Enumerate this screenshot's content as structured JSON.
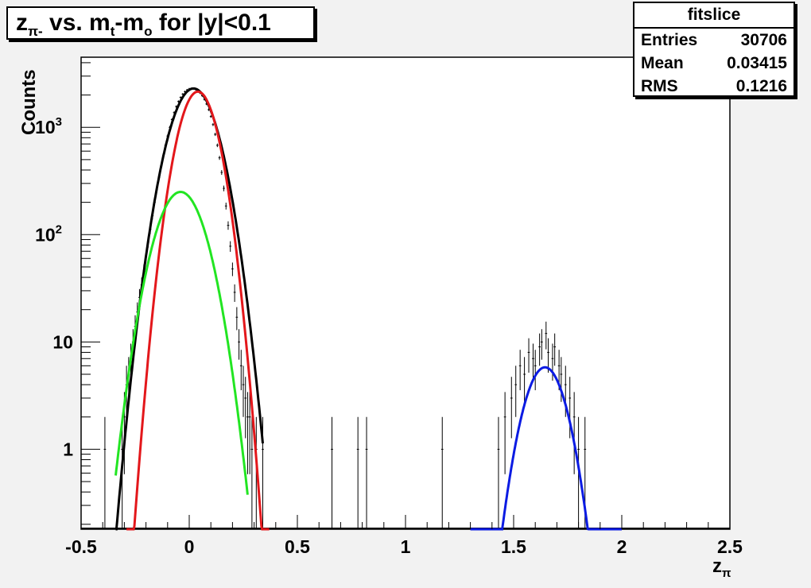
{
  "title": {
    "main": "z",
    "sub": "π-",
    "mid": " vs. m",
    "sub2": "t",
    "dash": "-m",
    "sub3": "o",
    "tail": " for |y|<0.1"
  },
  "stats": {
    "header": "fitslice",
    "rows": [
      {
        "label": "Entries",
        "value": "30706"
      },
      {
        "label": "Mean",
        "value": "0.03415"
      },
      {
        "label": "RMS",
        "value": "0.1216"
      }
    ]
  },
  "chart_data": {
    "type": "line",
    "xlabel": "z",
    "xlabel_sub": "π",
    "ylabel": "Counts",
    "xlim": [
      -0.5,
      2.5
    ],
    "ylim": [
      0.18,
      4500
    ],
    "y_scale": "log",
    "x_ticks": [
      "-0.5",
      "0",
      "0.5",
      "1",
      "1.5",
      "2",
      "2.5"
    ],
    "y_ticks": [
      {
        "value": 1,
        "label": "1"
      },
      {
        "value": 10,
        "label": "10"
      },
      {
        "value": 100,
        "label": "10",
        "exp": "2"
      },
      {
        "value": 1000,
        "label": "10",
        "exp": "3"
      }
    ],
    "grid": false,
    "histogram": {
      "name": "data",
      "color": "#000000",
      "bin_width": 0.01,
      "points": [
        [
          -0.39,
          1
        ],
        [
          -0.31,
          1
        ],
        [
          -0.3,
          2
        ],
        [
          -0.29,
          4
        ],
        [
          -0.28,
          5
        ],
        [
          -0.27,
          7
        ],
        [
          -0.26,
          10
        ],
        [
          -0.25,
          14
        ],
        [
          -0.24,
          19
        ],
        [
          -0.23,
          26
        ],
        [
          -0.22,
          34
        ],
        [
          -0.21,
          46
        ],
        [
          -0.2,
          62
        ],
        [
          -0.19,
          85
        ],
        [
          -0.18,
          112
        ],
        [
          -0.17,
          150
        ],
        [
          -0.16,
          200
        ],
        [
          -0.15,
          262
        ],
        [
          -0.14,
          340
        ],
        [
          -0.13,
          435
        ],
        [
          -0.12,
          545
        ],
        [
          -0.11,
          680
        ],
        [
          -0.1,
          830
        ],
        [
          -0.09,
          1000
        ],
        [
          -0.08,
          1180
        ],
        [
          -0.07,
          1370
        ],
        [
          -0.06,
          1560
        ],
        [
          -0.05,
          1740
        ],
        [
          -0.04,
          1900
        ],
        [
          -0.03,
          2040
        ],
        [
          -0.02,
          2150
        ],
        [
          -0.01,
          2230
        ],
        [
          0.0,
          2280
        ],
        [
          0.01,
          2300
        ],
        [
          0.02,
          2290
        ],
        [
          0.03,
          2250
        ],
        [
          0.04,
          2180
        ],
        [
          0.05,
          2090
        ],
        [
          0.06,
          1970
        ],
        [
          0.07,
          1820
        ],
        [
          0.08,
          1650
        ],
        [
          0.09,
          1460
        ],
        [
          0.1,
          1260
        ],
        [
          0.11,
          1060
        ],
        [
          0.12,
          860
        ],
        [
          0.13,
          680
        ],
        [
          0.14,
          520
        ],
        [
          0.15,
          380
        ],
        [
          0.16,
          270
        ],
        [
          0.17,
          185
        ],
        [
          0.18,
          122
        ],
        [
          0.19,
          78
        ],
        [
          0.2,
          48
        ],
        [
          0.21,
          29
        ],
        [
          0.22,
          17
        ],
        [
          0.23,
          10
        ],
        [
          0.24,
          6
        ],
        [
          0.25,
          4
        ],
        [
          0.26,
          3
        ],
        [
          0.27,
          2
        ],
        [
          0.28,
          2
        ],
        [
          0.29,
          1
        ],
        [
          0.31,
          1
        ],
        [
          0.34,
          1
        ],
        [
          0.66,
          1
        ],
        [
          0.78,
          1
        ],
        [
          0.82,
          1
        ],
        [
          1.17,
          1
        ],
        [
          1.43,
          1
        ],
        [
          1.46,
          2
        ],
        [
          1.49,
          3
        ],
        [
          1.51,
          4
        ],
        [
          1.53,
          6
        ],
        [
          1.55,
          5
        ],
        [
          1.57,
          8
        ],
        [
          1.59,
          7
        ],
        [
          1.6,
          6
        ],
        [
          1.62,
          9
        ],
        [
          1.63,
          10
        ],
        [
          1.65,
          12
        ],
        [
          1.66,
          8
        ],
        [
          1.68,
          7
        ],
        [
          1.69,
          9
        ],
        [
          1.71,
          6
        ],
        [
          1.72,
          5
        ],
        [
          1.74,
          4
        ],
        [
          1.76,
          3
        ],
        [
          1.78,
          2
        ],
        [
          1.8,
          1
        ],
        [
          1.83,
          1
        ]
      ]
    },
    "fits": [
      {
        "name": "total",
        "color": "#000000",
        "shape": "gaussian",
        "amplitude": 2300,
        "mean": 0.02,
        "sigma": 0.082,
        "range": [
          -0.34,
          0.34
        ]
      },
      {
        "name": "main",
        "color": "#e3171b",
        "shape": "gaussian",
        "amplitude": 2150,
        "mean": 0.04,
        "sigma": 0.068,
        "range": [
          -0.29,
          0.37
        ]
      },
      {
        "name": "secondary",
        "color": "#22e522",
        "shape": "gaussian",
        "amplitude": 250,
        "mean": -0.04,
        "sigma": 0.086,
        "range": [
          -0.34,
          0.27
        ]
      },
      {
        "name": "peak2",
        "color": "#0b1be3",
        "shape": "gaussian",
        "amplitude": 5.8,
        "mean": 1.645,
        "sigma": 0.075,
        "range": [
          1.3,
          2.0
        ]
      }
    ]
  }
}
